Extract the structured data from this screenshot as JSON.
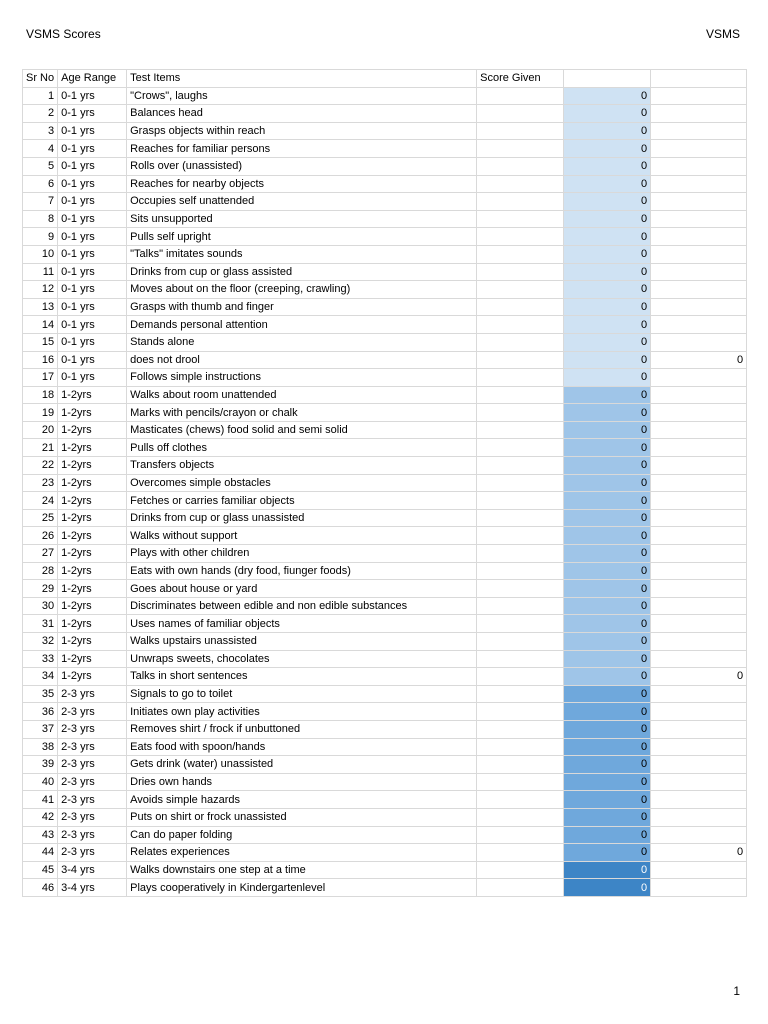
{
  "header": {
    "title": "VSMS Scores",
    "right": "VSMS"
  },
  "table": {
    "columns": [
      "Sr No",
      "Age Range",
      "Test Items",
      "Score Given"
    ],
    "groups": [
      {
        "color": "#cfe2f3",
        "rows": [
          {
            "sr": 1,
            "age": "0-1 yrs",
            "item": "\"Crows\", laughs",
            "score": 0
          },
          {
            "sr": 2,
            "age": "0-1 yrs",
            "item": "Balances head",
            "score": 0
          },
          {
            "sr": 3,
            "age": "0-1 yrs",
            "item": "Grasps objects within reach",
            "score": 0
          },
          {
            "sr": 4,
            "age": "0-1 yrs",
            "item": "Reaches for familiar persons",
            "score": 0
          },
          {
            "sr": 5,
            "age": "0-1 yrs",
            "item": "Rolls over (unassisted)",
            "score": 0
          },
          {
            "sr": 6,
            "age": "0-1 yrs",
            "item": "Reaches for nearby objects",
            "score": 0
          },
          {
            "sr": 7,
            "age": "0-1 yrs",
            "item": "Occupies self unattended",
            "score": 0
          },
          {
            "sr": 8,
            "age": "0-1 yrs",
            "item": "Sits unsupported",
            "score": 0
          },
          {
            "sr": 9,
            "age": "0-1 yrs",
            "item": "Pulls self upright",
            "score": 0
          },
          {
            "sr": 10,
            "age": "0-1 yrs",
            "item": "\"Talks\" imitates sounds",
            "score": 0
          },
          {
            "sr": 11,
            "age": "0-1 yrs",
            "item": "Drinks from cup or glass assisted",
            "score": 0
          },
          {
            "sr": 12,
            "age": "0-1 yrs",
            "item": "Moves about on the floor (creeping, crawling)",
            "score": 0
          },
          {
            "sr": 13,
            "age": "0-1 yrs",
            "item": "Grasps with thumb and finger",
            "score": 0
          },
          {
            "sr": 14,
            "age": "0-1 yrs",
            "item": "Demands personal attention",
            "score": 0
          },
          {
            "sr": 15,
            "age": "0-1 yrs",
            "item": "Stands alone",
            "score": 0
          },
          {
            "sr": 16,
            "age": "0-1 yrs",
            "item": "does not drool",
            "score": 0,
            "total": 0
          },
          {
            "sr": 17,
            "age": "0-1 yrs",
            "item": "Follows simple instructions",
            "score": 0
          }
        ]
      },
      {
        "color": "#9fc5e8",
        "rows": [
          {
            "sr": 18,
            "age": "1-2yrs",
            "item": "Walks about room unattended",
            "score": 0
          },
          {
            "sr": 19,
            "age": "1-2yrs",
            "item": "Marks with pencils/crayon or chalk",
            "score": 0
          },
          {
            "sr": 20,
            "age": "1-2yrs",
            "item": "Masticates (chews) food solid and semi solid",
            "score": 0
          },
          {
            "sr": 21,
            "age": "1-2yrs",
            "item": "Pulls off clothes",
            "score": 0
          },
          {
            "sr": 22,
            "age": "1-2yrs",
            "item": "Transfers objects",
            "score": 0
          },
          {
            "sr": 23,
            "age": "1-2yrs",
            "item": "Overcomes simple obstacles",
            "score": 0
          },
          {
            "sr": 24,
            "age": "1-2yrs",
            "item": "Fetches or carries familiar objects",
            "score": 0
          },
          {
            "sr": 25,
            "age": "1-2yrs",
            "item": "Drinks from cup or glass unassisted",
            "score": 0
          },
          {
            "sr": 26,
            "age": "1-2yrs",
            "item": "Walks without support",
            "score": 0
          },
          {
            "sr": 27,
            "age": "1-2yrs",
            "item": "Plays with other children",
            "score": 0
          },
          {
            "sr": 28,
            "age": "1-2yrs",
            "item": "Eats with own hands (dry food, fiunger foods)",
            "score": 0
          },
          {
            "sr": 29,
            "age": "1-2yrs",
            "item": "Goes about house or yard",
            "score": 0
          },
          {
            "sr": 30,
            "age": "1-2yrs",
            "item": "Discriminates between edible and non edible substances",
            "score": 0
          },
          {
            "sr": 31,
            "age": "1-2yrs",
            "item": "Uses names of familiar objects",
            "score": 0
          },
          {
            "sr": 32,
            "age": "1-2yrs",
            "item": "Walks upstairs unassisted",
            "score": 0
          },
          {
            "sr": 33,
            "age": "1-2yrs",
            "item": "Unwraps sweets, chocolates",
            "score": 0
          },
          {
            "sr": 34,
            "age": "1-2yrs",
            "item": "Talks in short sentences",
            "score": 0,
            "total": 0
          }
        ]
      },
      {
        "color": "#6fa8dc",
        "rows": [
          {
            "sr": 35,
            "age": "2-3 yrs",
            "item": "Signals to go to toilet",
            "score": 0
          },
          {
            "sr": 36,
            "age": "2-3 yrs",
            "item": "Initiates own play activities",
            "score": 0
          },
          {
            "sr": 37,
            "age": "2-3 yrs",
            "item": "Removes shirt / frock if unbuttoned",
            "score": 0
          },
          {
            "sr": 38,
            "age": "2-3 yrs",
            "item": "Eats food with spoon/hands",
            "score": 0
          },
          {
            "sr": 39,
            "age": "2-3 yrs",
            "item": "Gets drink (water) unassisted",
            "score": 0
          },
          {
            "sr": 40,
            "age": "2-3 yrs",
            "item": "Dries own hands",
            "score": 0
          },
          {
            "sr": 41,
            "age": "2-3 yrs",
            "item": "Avoids simple hazards",
            "score": 0
          },
          {
            "sr": 42,
            "age": "2-3 yrs",
            "item": "Puts on shirt or frock unassisted",
            "score": 0
          },
          {
            "sr": 43,
            "age": "2-3 yrs",
            "item": "Can do paper folding",
            "score": 0
          },
          {
            "sr": 44,
            "age": "2-3 yrs",
            "item": "Relates experiences",
            "score": 0,
            "total": 0
          }
        ]
      },
      {
        "color": "#3d85c6",
        "text_color": "#ffffff",
        "rows": [
          {
            "sr": 45,
            "age": "3-4 yrs",
            "item": "Walks downstairs one step at a time",
            "score": 0
          },
          {
            "sr": 46,
            "age": "3-4 yrs",
            "item": "Plays cooperatively in Kindergartenlevel",
            "score": 0
          }
        ]
      }
    ]
  },
  "footer": {
    "page": "1"
  }
}
